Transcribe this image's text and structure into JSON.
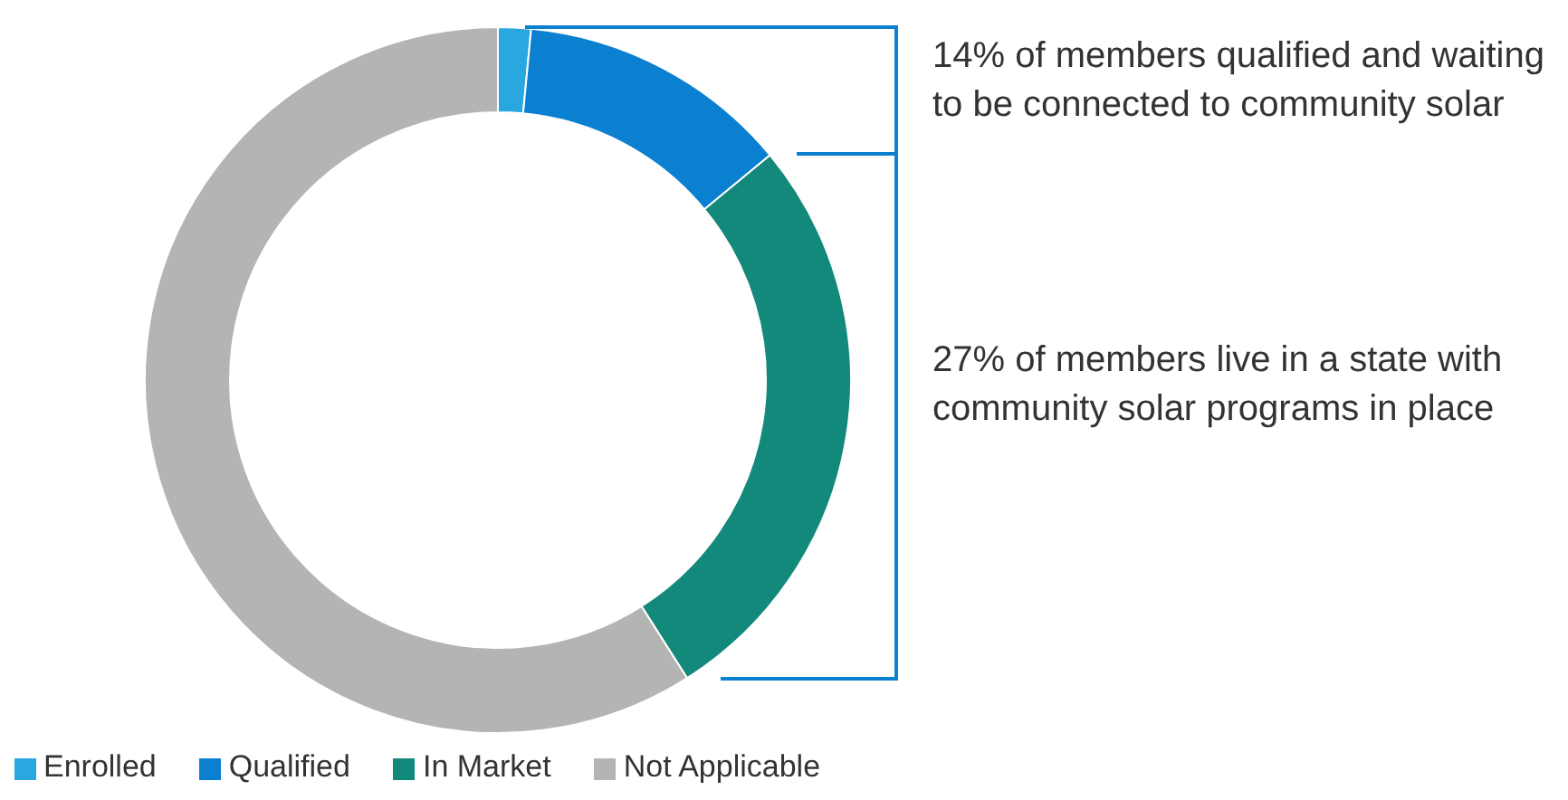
{
  "chart_data": {
    "type": "donut",
    "categories": [
      "Enrolled",
      "Qualified",
      "In Market",
      "Not Applicable"
    ],
    "values": [
      1.5,
      12.5,
      27,
      59
    ],
    "colors": [
      "#29a8e0",
      "#0b7fd0",
      "#12897a",
      "#b4b4b2"
    ],
    "annotations": [
      "14% of members qualified and waiting to be connected to community solar",
      "27% of members live in a state with community solar programs in place"
    ],
    "legend": "bottom left"
  }
}
